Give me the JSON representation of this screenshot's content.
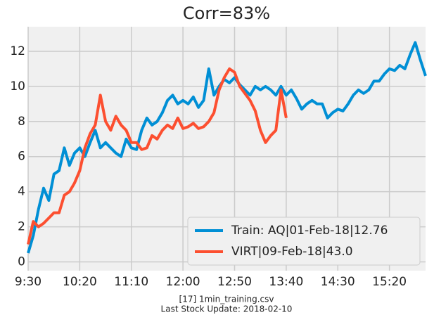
{
  "chart_data": {
    "type": "line",
    "title": "Corr=83%",
    "xlabel": [
      "[17] 1min_training.csv",
      "Last Stock Update: 2018-02-10"
    ],
    "x": [
      570,
      575,
      580,
      585,
      590,
      595,
      600,
      605,
      610,
      615,
      620,
      625,
      630,
      635,
      640,
      645,
      650,
      655,
      660,
      665,
      670,
      675,
      680,
      685,
      690,
      695,
      700,
      705,
      710,
      715,
      720,
      725,
      730,
      735,
      740,
      745,
      750,
      755,
      760,
      765,
      770,
      775,
      780,
      785,
      790,
      795,
      800,
      805,
      810,
      815,
      820,
      825,
      830,
      835,
      840,
      845,
      850,
      855,
      860,
      865,
      870,
      875,
      880,
      885,
      890,
      895,
      900,
      905,
      910,
      915,
      920,
      925,
      930,
      935,
      940,
      945,
      950,
      955
    ],
    "series": [
      {
        "name": "Train: AQ|01-Feb-18|12.76",
        "color": "#008fd5",
        "values": [
          0.5,
          1.5,
          3.0,
          4.2,
          3.5,
          5.0,
          5.2,
          6.5,
          5.5,
          6.2,
          6.5,
          6.0,
          6.8,
          7.5,
          6.5,
          6.8,
          6.5,
          6.2,
          6.0,
          7.0,
          6.5,
          6.4,
          7.5,
          8.2,
          7.8,
          8.0,
          8.5,
          9.2,
          9.5,
          9.0,
          9.2,
          9.0,
          9.4,
          8.8,
          9.2,
          11.0,
          9.5,
          10.0,
          10.4,
          10.2,
          10.5,
          10.1,
          9.8,
          9.5,
          10.0,
          9.8,
          10.0,
          9.8,
          9.5,
          10.0,
          9.5,
          9.8,
          9.3,
          8.7,
          9.0,
          9.2,
          9.0,
          9.0,
          8.2,
          8.5,
          8.7,
          8.6,
          9.0,
          9.5,
          9.8,
          9.6,
          9.8,
          10.3,
          10.3,
          10.7,
          11.0,
          10.9,
          11.2,
          11.0,
          11.8,
          12.5,
          11.5,
          10.6
        ]
      },
      {
        "name": "VIRT|09-Feb-18|43.0",
        "color": "#fc4f30",
        "values": [
          1.0,
          2.3,
          2.0,
          2.2,
          2.5,
          2.8,
          2.8,
          3.8,
          4.0,
          4.5,
          5.2,
          6.5,
          7.3,
          7.8,
          9.5,
          8.0,
          7.5,
          8.3,
          7.8,
          7.5,
          6.8,
          6.8,
          6.4,
          6.5,
          7.2,
          7.0,
          7.5,
          7.8,
          7.6,
          8.2,
          7.6,
          7.7,
          7.9,
          7.6,
          7.7,
          8.0,
          8.5,
          9.8,
          10.5,
          11.0,
          10.8,
          10.0,
          9.6,
          9.2,
          8.6,
          7.5,
          6.8,
          7.2,
          7.5,
          9.8,
          8.2,
          null,
          null,
          null,
          null,
          null,
          null,
          null,
          null,
          null,
          null,
          null,
          null,
          null,
          null,
          null,
          null,
          null,
          null,
          null,
          null,
          null,
          null,
          null,
          null,
          null,
          null,
          null
        ]
      }
    ],
    "xlim": [
      570,
      955
    ],
    "xticks": [
      {
        "value": 570,
        "label": "9:30"
      },
      {
        "value": 620,
        "label": "10:20"
      },
      {
        "value": 670,
        "label": "11:10"
      },
      {
        "value": 720,
        "label": "12:00"
      },
      {
        "value": 770,
        "label": "12:50"
      },
      {
        "value": 820,
        "label": "13:40"
      },
      {
        "value": 870,
        "label": "14:30"
      },
      {
        "value": 920,
        "label": "15:20"
      }
    ],
    "ylim": [
      -0.5,
      13.4
    ],
    "yticks": [
      0,
      2,
      4,
      6,
      8,
      10,
      12
    ],
    "grid": true,
    "legend": "lower right"
  }
}
